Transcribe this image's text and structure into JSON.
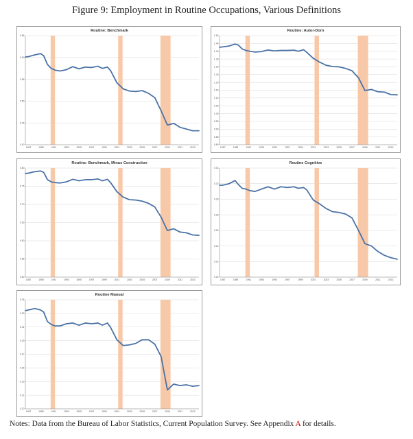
{
  "figure_title": "Figure 9: Employment in Routine Occupations, Various Definitions",
  "notes": {
    "prefix": "Notes: Data from the Bureau of Labor Statistics, Current Population Survey. See Appendix ",
    "ref": "A",
    "suffix": " for details."
  },
  "colors": {
    "series": "#4a72a6",
    "recession": "#f8c9a8",
    "reference": "#cc0000"
  },
  "recessions": [
    [
      1990.5,
      1991.2
    ],
    [
      2001.2,
      2001.9
    ],
    [
      2007.9,
      2009.5
    ]
  ],
  "x_ticks": [
    1987,
    1989,
    1991,
    1993,
    1995,
    1997,
    1999,
    2001,
    2003,
    2005,
    2007,
    2009,
    2011,
    2013
  ],
  "x_range": [
    1986.5,
    2014.0
  ],
  "chart_data": [
    {
      "type": "line",
      "title": "Routine: Benchmark",
      "ylim": [
        0.4,
        0.65
      ],
      "yticks": [
        "0.65",
        "0.60",
        "0.55",
        "0.50",
        "0.45",
        "0.40"
      ],
      "series": [
        {
          "values": [
            [
              1986.5,
              0.601
            ],
            [
              1987,
              0.602
            ],
            [
              1988,
              0.606
            ],
            [
              1988.9,
              0.609
            ],
            [
              1989.4,
              0.604
            ],
            [
              1990,
              0.584
            ],
            [
              1990.6,
              0.575
            ],
            [
              1991.2,
              0.571
            ],
            [
              1992,
              0.569
            ],
            [
              1993,
              0.572
            ],
            [
              1994,
              0.579
            ],
            [
              1995,
              0.574
            ],
            [
              1996,
              0.578
            ],
            [
              1997,
              0.577
            ],
            [
              1998,
              0.58
            ],
            [
              1998.7,
              0.575
            ],
            [
              1999.5,
              0.578
            ],
            [
              2000,
              0.57
            ],
            [
              2001,
              0.542
            ],
            [
              2002,
              0.528
            ],
            [
              2003,
              0.523
            ],
            [
              2004,
              0.522
            ],
            [
              2005,
              0.524
            ],
            [
              2006,
              0.518
            ],
            [
              2007,
              0.508
            ],
            [
              2008,
              0.478
            ],
            [
              2009,
              0.445
            ],
            [
              2010,
              0.449
            ],
            [
              2011,
              0.44
            ],
            [
              2012,
              0.436
            ],
            [
              2013,
              0.432
            ],
            [
              2014,
              0.432
            ]
          ]
        }
      ]
    },
    {
      "type": "line",
      "title": "Routine: Autor-Dorn",
      "ylim": [
        0.8,
        1.5
      ],
      "yticks": [
        "1.50",
        "1.45",
        "1.40",
        "1.35",
        "1.30",
        "1.25",
        "1.20",
        "1.15",
        "1.10",
        "1.05",
        "1.00",
        "0.95",
        "0.90",
        "0.85",
        "0.80"
      ],
      "series": [
        {
          "values": [
            [
              1986.5,
              1.426
            ],
            [
              1987,
              1.428
            ],
            [
              1988,
              1.434
            ],
            [
              1988.9,
              1.446
            ],
            [
              1989.4,
              1.44
            ],
            [
              1990,
              1.415
            ],
            [
              1990.6,
              1.405
            ],
            [
              1991.2,
              1.4
            ],
            [
              1992,
              1.395
            ],
            [
              1993,
              1.398
            ],
            [
              1994,
              1.408
            ],
            [
              1995,
              1.402
            ],
            [
              1996,
              1.405
            ],
            [
              1997,
              1.405
            ],
            [
              1998,
              1.407
            ],
            [
              1998.7,
              1.4
            ],
            [
              1999.5,
              1.41
            ],
            [
              2000,
              1.393
            ],
            [
              2001,
              1.355
            ],
            [
              2002,
              1.33
            ],
            [
              2003,
              1.31
            ],
            [
              2004,
              1.302
            ],
            [
              2005,
              1.3
            ],
            [
              2006,
              1.29
            ],
            [
              2007,
              1.275
            ],
            [
              2008,
              1.23
            ],
            [
              2009,
              1.148
            ],
            [
              2010,
              1.155
            ],
            [
              2011,
              1.14
            ],
            [
              2012,
              1.138
            ],
            [
              2013,
              1.122
            ],
            [
              2014,
              1.12
            ]
          ]
        }
      ]
    },
    {
      "type": "line",
      "title": "Routine: Benchmark, Minus Construction",
      "ylim": [
        0.5,
        0.8
      ],
      "yticks": [
        "0.80",
        "0.75",
        "0.70",
        "0.65",
        "0.60",
        "0.55",
        "0.50"
      ],
      "series": [
        {
          "values": [
            [
              1986.5,
              0.785
            ],
            [
              1987,
              0.786
            ],
            [
              1988,
              0.79
            ],
            [
              1988.9,
              0.792
            ],
            [
              1989.4,
              0.788
            ],
            [
              1990,
              0.768
            ],
            [
              1990.6,
              0.762
            ],
            [
              1991.2,
              0.76
            ],
            [
              1992,
              0.759
            ],
            [
              1993,
              0.762
            ],
            [
              1994,
              0.769
            ],
            [
              1995,
              0.765
            ],
            [
              1996,
              0.768
            ],
            [
              1997,
              0.768
            ],
            [
              1998,
              0.77
            ],
            [
              1998.7,
              0.765
            ],
            [
              1999.5,
              0.769
            ],
            [
              2000,
              0.76
            ],
            [
              2001,
              0.735
            ],
            [
              2002,
              0.72
            ],
            [
              2003,
              0.713
            ],
            [
              2004,
              0.712
            ],
            [
              2005,
              0.709
            ],
            [
              2006,
              0.703
            ],
            [
              2007,
              0.693
            ],
            [
              2008,
              0.665
            ],
            [
              2009,
              0.628
            ],
            [
              2010,
              0.633
            ],
            [
              2011,
              0.624
            ],
            [
              2012,
              0.622
            ],
            [
              2013,
              0.616
            ],
            [
              2014,
              0.615
            ]
          ]
        }
      ]
    },
    {
      "type": "line",
      "title": "Routine Cognitive",
      "ylim": [
        0.2,
        0.34
      ],
      "yticks": [
        "0.34",
        "0.32",
        "0.30",
        "0.28",
        "0.26",
        "0.24",
        "0.22",
        "0.20"
      ],
      "series": [
        {
          "values": [
            [
              1986.5,
              0.318
            ],
            [
              1987,
              0.318
            ],
            [
              1988,
              0.32
            ],
            [
              1988.9,
              0.324
            ],
            [
              1989.4,
              0.319
            ],
            [
              1990,
              0.314
            ],
            [
              1990.6,
              0.313
            ],
            [
              1991.2,
              0.311
            ],
            [
              1992,
              0.31
            ],
            [
              1993,
              0.313
            ],
            [
              1994,
              0.316
            ],
            [
              1995,
              0.313
            ],
            [
              1996,
              0.316
            ],
            [
              1997,
              0.315
            ],
            [
              1998,
              0.316
            ],
            [
              1998.7,
              0.314
            ],
            [
              1999.5,
              0.315
            ],
            [
              2000,
              0.312
            ],
            [
              2001,
              0.299
            ],
            [
              2002,
              0.294
            ],
            [
              2003,
              0.288
            ],
            [
              2004,
              0.284
            ],
            [
              2005,
              0.283
            ],
            [
              2006,
              0.281
            ],
            [
              2007,
              0.276
            ],
            [
              2008,
              0.26
            ],
            [
              2009,
              0.243
            ],
            [
              2010,
              0.24
            ],
            [
              2011,
              0.233
            ],
            [
              2012,
              0.228
            ],
            [
              2013,
              0.225
            ],
            [
              2014,
              0.223
            ]
          ]
        }
      ]
    },
    {
      "type": "line",
      "title": "Routine Manual",
      "ylim": [
        0.2,
        0.35
      ],
      "yticks": [
        "0.35",
        "0.33",
        "0.31",
        "0.29",
        "0.27",
        "0.25",
        "0.23",
        "0.21",
        "0.20"
      ],
      "series": [
        {
          "values": [
            [
              1986.5,
              0.335
            ],
            [
              1987,
              0.336
            ],
            [
              1988,
              0.338
            ],
            [
              1988.9,
              0.336
            ],
            [
              1989.4,
              0.333
            ],
            [
              1990,
              0.32
            ],
            [
              1990.6,
              0.316
            ],
            [
              1991.2,
              0.314
            ],
            [
              1992,
              0.314
            ],
            [
              1993,
              0.317
            ],
            [
              1994,
              0.318
            ],
            [
              1995,
              0.315
            ],
            [
              1996,
              0.318
            ],
            [
              1997,
              0.317
            ],
            [
              1998,
              0.318
            ],
            [
              1998.7,
              0.315
            ],
            [
              1999.5,
              0.318
            ],
            [
              2000,
              0.312
            ],
            [
              2001,
              0.295
            ],
            [
              2002,
              0.287
            ],
            [
              2003,
              0.288
            ],
            [
              2004,
              0.29
            ],
            [
              2005,
              0.295
            ],
            [
              2006,
              0.295
            ],
            [
              2007,
              0.289
            ],
            [
              2008,
              0.272
            ],
            [
              2009,
              0.226
            ],
            [
              2010,
              0.234
            ],
            [
              2011,
              0.232
            ],
            [
              2012,
              0.233
            ],
            [
              2013,
              0.231
            ],
            [
              2014,
              0.232
            ]
          ]
        }
      ]
    }
  ]
}
